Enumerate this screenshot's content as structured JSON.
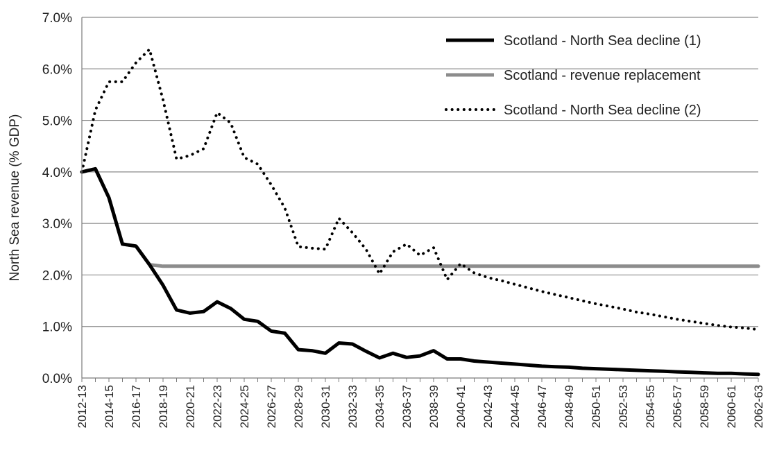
{
  "chart_data": {
    "type": "line",
    "ylabel": "North Sea revenue (% GDP)",
    "xlabel": "",
    "title": "",
    "ylim": [
      0,
      0.07
    ],
    "y_ticks": [
      "0.0%",
      "1.0%",
      "2.0%",
      "3.0%",
      "4.0%",
      "5.0%",
      "6.0%",
      "7.0%"
    ],
    "y_tick_values": [
      0,
      0.01,
      0.02,
      0.03,
      0.04,
      0.05,
      0.06,
      0.07
    ],
    "grid": "horizontal",
    "legend_position": "top-right",
    "x": [
      "2012-13",
      "2013-14",
      "2014-15",
      "2015-16",
      "2016-17",
      "2017-18",
      "2018-19",
      "2019-20",
      "2020-21",
      "2021-22",
      "2022-23",
      "2023-24",
      "2024-25",
      "2025-26",
      "2026-27",
      "2027-28",
      "2028-29",
      "2029-30",
      "2030-31",
      "2031-32",
      "2032-33",
      "2033-34",
      "2034-35",
      "2035-36",
      "2036-37",
      "2037-38",
      "2038-39",
      "2039-40",
      "2040-41",
      "2041-42",
      "2042-43",
      "2043-44",
      "2044-45",
      "2045-46",
      "2046-47",
      "2047-48",
      "2048-49",
      "2049-50",
      "2050-51",
      "2051-52",
      "2052-53",
      "2053-54",
      "2054-55",
      "2055-56",
      "2056-57",
      "2057-58",
      "2058-59",
      "2059-60",
      "2060-61",
      "2061-62",
      "2062-63"
    ],
    "x_tick_labels": [
      "2012-13",
      "2014-15",
      "2016-17",
      "2018-19",
      "2020-21",
      "2022-23",
      "2024-25",
      "2026-27",
      "2028-29",
      "2030-31",
      "2032-33",
      "2034-35",
      "2036-37",
      "2038-39",
      "2040-41",
      "2042-43",
      "2044-45",
      "2046-47",
      "2048-49",
      "2050-51",
      "2052-53",
      "2054-55",
      "2056-57",
      "2058-59",
      "2060-61",
      "2062-63"
    ],
    "series": [
      {
        "name": "Scotland - North Sea decline (1)",
        "color": "#000000",
        "style": "solid",
        "values": [
          0.04,
          0.0406,
          0.035,
          0.026,
          0.0256,
          0.022,
          0.018,
          0.0132,
          0.0126,
          0.0129,
          0.0148,
          0.0135,
          0.0114,
          0.011,
          0.0091,
          0.0087,
          0.0055,
          0.0053,
          0.0048,
          0.0068,
          0.0066,
          0.0052,
          0.0039,
          0.0048,
          0.004,
          0.0043,
          0.0053,
          0.0037,
          0.0037,
          0.0033,
          0.0031,
          0.0029,
          0.0027,
          0.0025,
          0.0023,
          0.0022,
          0.0021,
          0.0019,
          0.0018,
          0.0017,
          0.0016,
          0.0015,
          0.0014,
          0.0013,
          0.0012,
          0.0011,
          0.001,
          0.0009,
          0.0009,
          0.0008,
          0.0007
        ]
      },
      {
        "name": "Scotland - revenue replacement",
        "color": "#8c8c8c",
        "style": "solid",
        "values": [
          0.04,
          0.0406,
          0.035,
          0.026,
          0.0256,
          0.022,
          0.0217,
          0.0217,
          0.0217,
          0.0217,
          0.0217,
          0.0217,
          0.0217,
          0.0217,
          0.0217,
          0.0217,
          0.0217,
          0.0217,
          0.0217,
          0.0217,
          0.0217,
          0.0217,
          0.0217,
          0.0217,
          0.0217,
          0.0217,
          0.0217,
          0.0217,
          0.0217,
          0.0217,
          0.0217,
          0.0217,
          0.0217,
          0.0217,
          0.0217,
          0.0217,
          0.0217,
          0.0217,
          0.0217,
          0.0217,
          0.0217,
          0.0217,
          0.0217,
          0.0217,
          0.0217,
          0.0217,
          0.0217,
          0.0217,
          0.0217,
          0.0217,
          0.0217
        ]
      },
      {
        "name": "Scotland - North Sea decline (2)",
        "color": "#000000",
        "style": "dotted",
        "values": [
          0.04,
          0.052,
          0.0575,
          0.0575,
          0.0612,
          0.0638,
          0.054,
          0.0425,
          0.0432,
          0.0445,
          0.0515,
          0.0495,
          0.0428,
          0.0415,
          0.0375,
          0.033,
          0.0255,
          0.0252,
          0.025,
          0.031,
          0.0282,
          0.025,
          0.0202,
          0.0245,
          0.026,
          0.0238,
          0.0253,
          0.0191,
          0.0222,
          0.0204,
          0.0195,
          0.0189,
          0.0182,
          0.0175,
          0.0168,
          0.0162,
          0.0156,
          0.015,
          0.0144,
          0.0139,
          0.0134,
          0.0128,
          0.0124,
          0.0119,
          0.0114,
          0.011,
          0.0106,
          0.0102,
          0.0099,
          0.0097,
          0.0094
        ]
      }
    ]
  }
}
